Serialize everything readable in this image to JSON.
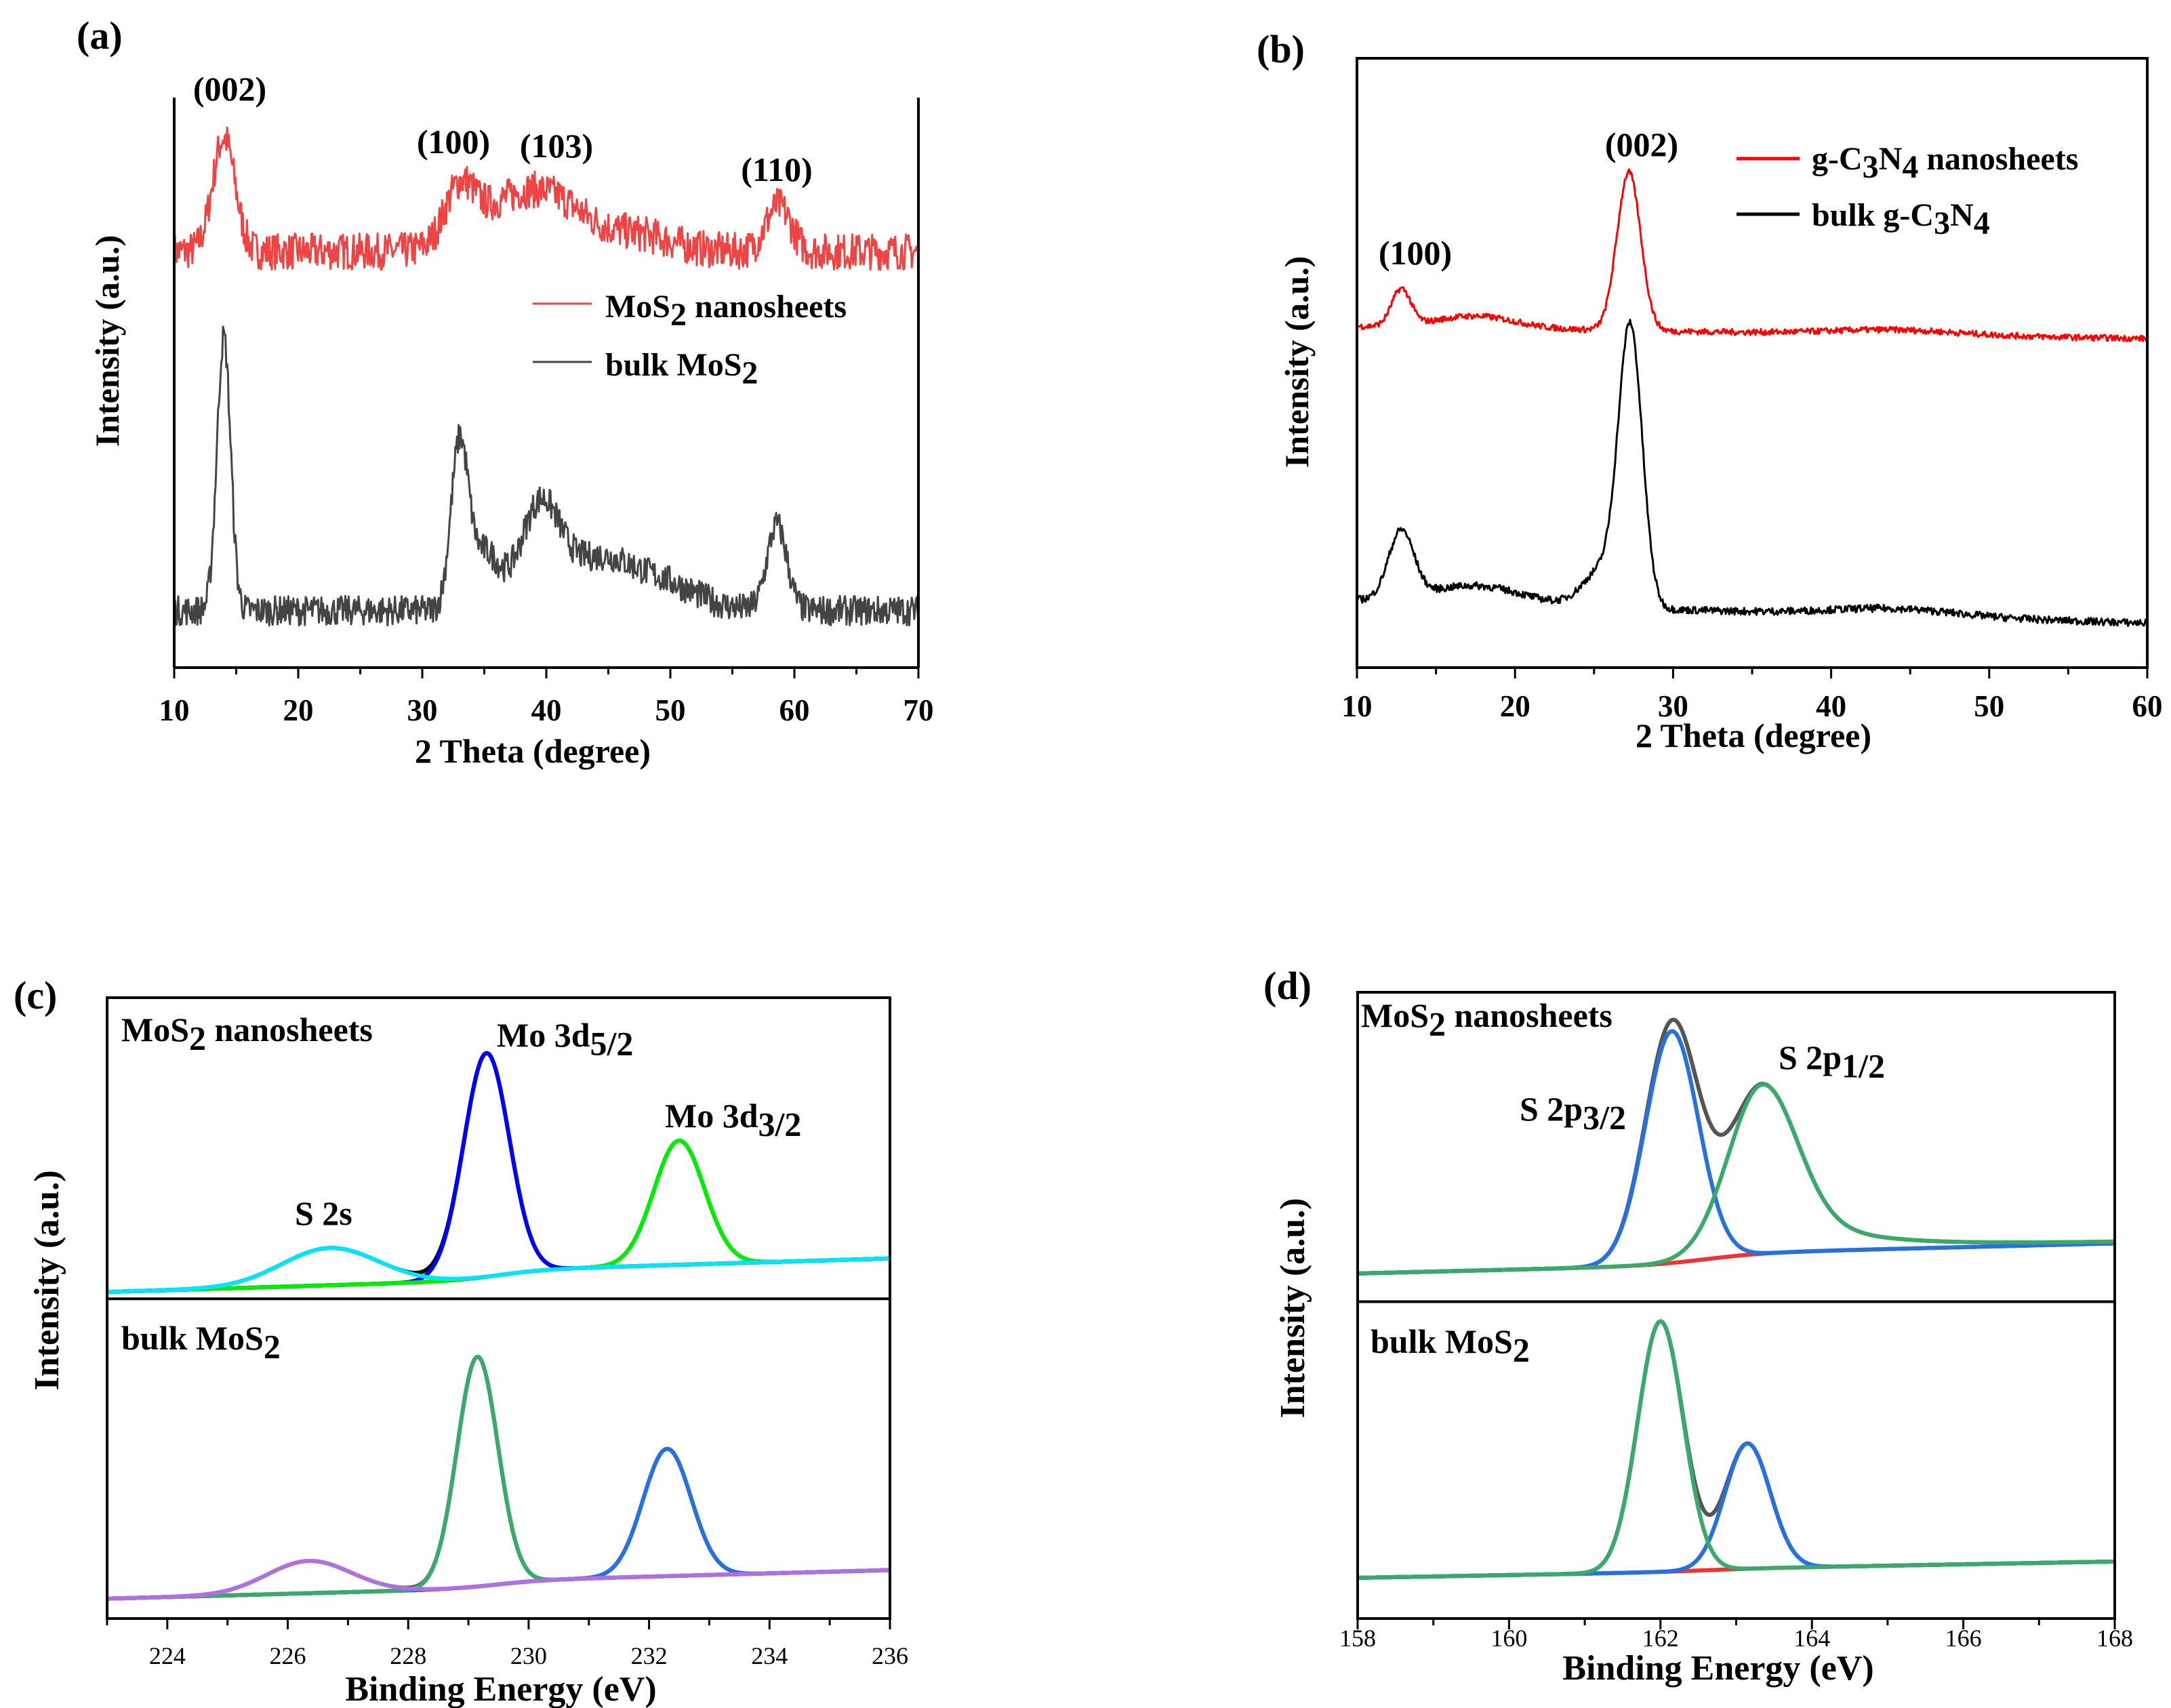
{
  "chart_data": [
    {
      "id": "a",
      "type": "line",
      "panel_label": "(a)",
      "xlabel": "2 Theta (degree)",
      "ylabel": "Intensity (a.u.)",
      "xlim": [
        10,
        70
      ],
      "ylim": [
        0,
        100
      ],
      "xticks": [
        10,
        20,
        30,
        40,
        50,
        60,
        70
      ],
      "grid": false,
      "legend": {
        "placement": "center-right",
        "entries": [
          {
            "segments": [
              [
                "MoS",
                ""
              ],
              [
                "2",
                "sub"
              ],
              [
                " nanosheets",
                ""
              ]
            ],
            "color": "#ef4444"
          },
          {
            "segments": [
              [
                "bulk MoS",
                ""
              ],
              [
                "2",
                "sub"
              ]
            ],
            "color": "#444444"
          }
        ]
      },
      "annotations": [
        {
          "segments": [
            [
              "(002)",
              ""
            ]
          ]
        },
        {
          "segments": [
            [
              "(100)",
              ""
            ]
          ]
        },
        {
          "segments": [
            [
              "(103)",
              ""
            ]
          ]
        },
        {
          "segments": [
            [
              "(110)",
              ""
            ]
          ]
        }
      ],
      "series": [
        {
          "name": "MoS2 nanosheets",
          "color": "#ef4444",
          "base": [
            73,
            73
          ],
          "noise": 3.2,
          "peaks": [
            [
              14,
              20,
              0.9
            ],
            [
              33,
              9,
              1.2
            ],
            [
              37,
              8,
              3
            ],
            [
              41,
              6,
              2.5
            ],
            [
              58.7,
              8,
              1.0
            ],
            [
              47,
              3,
              3
            ]
          ]
        },
        {
          "name": "bulk MoS2",
          "color": "#444444",
          "base": [
            10,
            10
          ],
          "noise": 2.6,
          "peaks": [
            [
              14,
              48,
              0.55
            ],
            [
              33,
              28,
              0.7
            ],
            [
              35,
              10,
              1.2
            ],
            [
              39.5,
              18,
              1.6
            ],
            [
              44,
              8,
              2.5
            ],
            [
              49,
              5,
              3
            ],
            [
              58.6,
              15,
              0.8
            ]
          ]
        }
      ]
    },
    {
      "id": "b",
      "type": "line",
      "panel_label": "(b)",
      "xlabel": "2 Theta (degree)",
      "ylabel": "Intensity (a.u.)",
      "xlim": [
        10,
        60
      ],
      "ylim": [
        0,
        100
      ],
      "xticks": [
        10,
        20,
        30,
        40,
        50,
        60
      ],
      "grid": false,
      "legend": {
        "placement": "top-right",
        "entries": [
          {
            "segments": [
              [
                "g-C",
                ""
              ],
              [
                "3",
                "sub"
              ],
              [
                "N",
                ""
              ],
              [
                "4",
                "sub"
              ],
              [
                " nanosheets",
                ""
              ]
            ],
            "color": "#ff0000"
          },
          {
            "segments": [
              [
                "bulk g-C",
                ""
              ],
              [
                "3",
                "sub"
              ],
              [
                "N",
                ""
              ],
              [
                "4",
                "sub"
              ]
            ],
            "color": "#000000"
          }
        ]
      },
      "annotations": [
        {
          "segments": [
            [
              "(002)",
              ""
            ]
          ]
        },
        {
          "segments": [
            [
              "(100)",
              ""
            ]
          ]
        }
      ],
      "series": [
        {
          "name": "g-C3N4 nanosheets",
          "color": "#ff0000",
          "base": [
            56,
            54
          ],
          "noise": 0.5,
          "peaks": [
            [
              12.8,
              6,
              0.6
            ],
            [
              17.5,
              2,
              2.5
            ],
            [
              27.2,
              26,
              0.75
            ],
            [
              44,
              0.8,
              4
            ]
          ]
        },
        {
          "name": "bulk g-C3N4",
          "color": "#000000",
          "base": [
            11,
            7.3
          ],
          "noise": 0.6,
          "peaks": [
            [
              12.8,
              11,
              0.8
            ],
            [
              17.5,
              3,
              3
            ],
            [
              27.3,
              45,
              0.75
            ],
            [
              25.5,
              6,
              1.2
            ],
            [
              44,
              1.2,
              4
            ]
          ]
        }
      ]
    },
    {
      "id": "c",
      "type": "line",
      "panel_label": "(c)",
      "xlabel": "Binding Energy (eV)",
      "ylabel": "Intensity (a.u.)",
      "xlim": [
        223,
        236
      ],
      "ylim": [
        0,
        100
      ],
      "xticks": [
        224,
        226,
        228,
        230,
        232,
        234,
        236
      ],
      "grid": false,
      "divider": 51.5,
      "annotations": [
        {
          "segments": [
            [
              "MoS",
              ""
            ],
            [
              "2",
              "sub"
            ],
            [
              " nanosheets",
              ""
            ]
          ]
        },
        {
          "segments": [
            [
              "Mo 3d",
              ""
            ],
            [
              "5/2",
              "sub"
            ]
          ]
        },
        {
          "segments": [
            [
              "Mo 3d",
              ""
            ],
            [
              "3/2",
              "sub"
            ]
          ]
        },
        {
          "segments": [
            [
              "S 2s",
              ""
            ]
          ]
        },
        {
          "segments": [
            [
              "bulk MoS",
              ""
            ],
            [
              "2",
              "sub"
            ]
          ]
        }
      ],
      "series": [
        {
          "name": "nanosheets baseline",
          "color": "#ff0000",
          "base": [
            53.4,
            57.2
          ],
          "step": [
            229.5,
            1.6
          ],
          "peaks": []
        },
        {
          "name": "nanosheets envelope",
          "color": "#000000",
          "base": [
            53.4,
            57.2
          ],
          "step": [
            229.5,
            1.6
          ],
          "peaks": [
            [
              226.7,
              6,
              0.8
            ],
            [
              229.3,
              36,
              0.38
            ],
            [
              232.5,
              20,
              0.42
            ]
          ]
        },
        {
          "name": "Mo 3d5/2 component",
          "color": "#0000ff",
          "base": [
            53.4,
            57.2
          ],
          "step": [
            229.5,
            1.6
          ],
          "peaks": [
            [
              229.3,
              36,
              0.38
            ]
          ]
        },
        {
          "name": "Mo 3d3/2 component",
          "color": "#00ee00",
          "base": [
            53.4,
            57.2
          ],
          "step": [
            229.5,
            1.6
          ],
          "peaks": [
            [
              232.5,
              20,
              0.42
            ]
          ]
        },
        {
          "name": "S 2s component",
          "color": "#00e5ff",
          "base": [
            53.4,
            57.2
          ],
          "step": [
            229.5,
            1.6
          ],
          "peaks": [
            [
              226.7,
              6,
              0.8
            ]
          ]
        },
        {
          "name": "bulk baseline",
          "color": "#ff0000",
          "base": [
            3.8,
            7.2
          ],
          "step": [
            229.5,
            1.2
          ],
          "peaks": []
        },
        {
          "name": "bulk envelope",
          "color": "#555555",
          "base": [
            3.8,
            7.2
          ],
          "step": [
            229.5,
            1.2
          ],
          "peaks": [
            [
              226.35,
              5.2,
              0.7
            ],
            [
              229.15,
              37,
              0.34
            ],
            [
              232.3,
              20.5,
              0.4
            ]
          ]
        },
        {
          "name": "bulk Mo 3d3/2 component",
          "color": "#2670e0",
          "base": [
            3.8,
            7.2
          ],
          "step": [
            229.5,
            1.2
          ],
          "peaks": [
            [
              232.3,
              20.5,
              0.4
            ]
          ]
        },
        {
          "name": "bulk Mo 3d5/2 component",
          "color": "#3aaa6a",
          "base": [
            3.8,
            7.2
          ],
          "step": [
            229.5,
            1.2
          ],
          "peaks": [
            [
              229.15,
              37,
              0.34
            ]
          ]
        },
        {
          "name": "bulk S 2s component",
          "color": "#b070e0",
          "base": [
            3.8,
            7.2
          ],
          "step": [
            229.5,
            1.2
          ],
          "peaks": [
            [
              226.35,
              5.2,
              0.7
            ]
          ]
        }
      ]
    },
    {
      "id": "d",
      "type": "line",
      "panel_label": "(d)",
      "xlabel": "Binding Energy (eV)",
      "ylabel": "Intensity (a.u.)",
      "xlim": [
        158,
        168
      ],
      "ylim": [
        0,
        100
      ],
      "xticks": [
        158,
        160,
        162,
        164,
        166,
        168
      ],
      "grid": false,
      "divider": 50.6,
      "annotations": [
        {
          "segments": [
            [
              "MoS",
              ""
            ],
            [
              "2",
              "sub"
            ],
            [
              " nanosheets",
              ""
            ]
          ]
        },
        {
          "segments": [
            [
              "S 2p",
              ""
            ],
            [
              "1/2",
              "sub"
            ]
          ]
        },
        {
          "segments": [
            [
              "S 2p",
              ""
            ],
            [
              "3/2",
              "sub"
            ]
          ]
        },
        {
          "segments": [
            [
              "bulk MoS",
              ""
            ],
            [
              "2",
              "sub"
            ]
          ]
        }
      ],
      "series": [
        {
          "name": "nanosheets baseline",
          "color": "#ee3333",
          "base": [
            56,
            59
          ],
          "step": [
            162.6,
            1.8
          ],
          "peaks": []
        },
        {
          "name": "nanosheets envelope",
          "color": "#555555",
          "base": [
            56,
            59
          ],
          "step": [
            162.6,
            1.8
          ],
          "peaks": [
            [
              162.15,
              38,
              0.35
            ],
            [
              163.35,
              27,
              0.45,
              "tail"
            ]
          ]
        },
        {
          "name": "S 2p3/2 component",
          "color": "#2670e0",
          "base": [
            56,
            59
          ],
          "step": [
            162.6,
            1.8
          ],
          "peaks": [
            [
              162.15,
              37,
              0.35
            ]
          ]
        },
        {
          "name": "S 2p1/2 component",
          "color": "#3aaa6a",
          "base": [
            56,
            59
          ],
          "step": [
            162.6,
            1.8
          ],
          "peaks": [
            [
              163.35,
              27,
              0.45,
              "tail"
            ]
          ]
        },
        {
          "name": "bulk baseline",
          "color": "#ee3333",
          "base": [
            6.7,
            8.9
          ],
          "step": [
            162.6,
            0.4
          ],
          "peaks": []
        },
        {
          "name": "bulk envelope",
          "color": "#555555",
          "base": [
            6.7,
            8.9
          ],
          "step": [
            162.6,
            0.4
          ],
          "peaks": [
            [
              162.0,
              40,
              0.3
            ],
            [
              163.15,
              20,
              0.3
            ]
          ]
        },
        {
          "name": "bulk S 2p1/2 component",
          "color": "#2670e0",
          "base": [
            6.7,
            8.9
          ],
          "step": [
            162.6,
            0.4
          ],
          "peaks": [
            [
              163.15,
              20,
              0.3
            ]
          ]
        },
        {
          "name": "bulk S 2p3/2 component",
          "color": "#3aaa6a",
          "base": [
            6.7,
            8.9
          ],
          "step": [
            162.6,
            0.4
          ],
          "peaks": [
            [
              162.0,
              40,
              0.3
            ]
          ]
        }
      ]
    }
  ]
}
